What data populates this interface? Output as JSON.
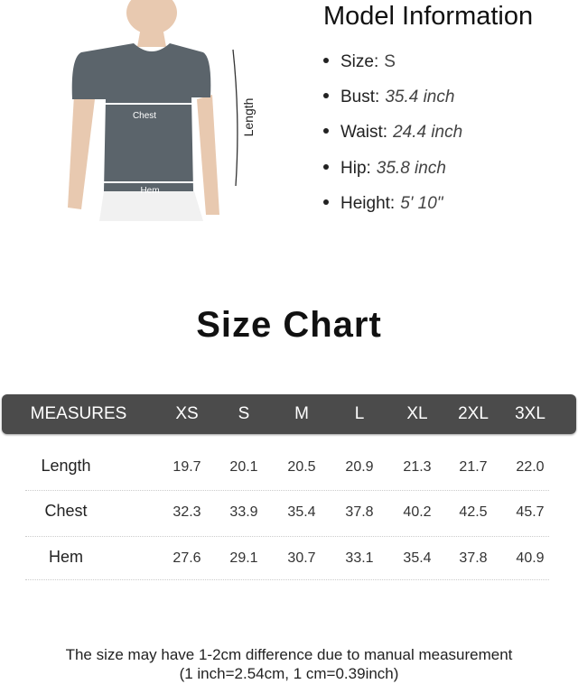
{
  "diagram": {
    "chest_label": "Chest",
    "hem_label": "Hem",
    "length_label": "Length",
    "shirt_color": "#5b646b"
  },
  "model_info": {
    "title": "Model Information",
    "items": [
      {
        "label": "Size:",
        "value": "S",
        "italic": false
      },
      {
        "label": "Bust:",
        "value": "35.4 inch",
        "italic": true
      },
      {
        "label": "Waist:",
        "value": "24.4 inch",
        "italic": true
      },
      {
        "label": "Hip:",
        "value": "35.8 inch",
        "italic": true
      },
      {
        "label": "Height:",
        "value": "5' 10\"",
        "italic": true
      }
    ]
  },
  "size_chart": {
    "title": "Size Chart",
    "header_color": "#4b4b4b",
    "headers": [
      "MEASURES",
      "XS",
      "S",
      "M",
      "L",
      "XL",
      "2XL",
      "3XL"
    ],
    "rows": [
      {
        "label": "Length",
        "values": [
          "19.7",
          "20.1",
          "20.5",
          "20.9",
          "21.3",
          "21.7",
          "22.0"
        ]
      },
      {
        "label": "Chest",
        "values": [
          "32.3",
          "33.9",
          "35.4",
          "37.8",
          "40.2",
          "42.5",
          "45.7"
        ]
      },
      {
        "label": "Hem",
        "values": [
          "27.6",
          "29.1",
          "30.7",
          "33.1",
          "35.4",
          "37.8",
          "40.9"
        ]
      }
    ]
  },
  "footer": {
    "line1": "The size may have 1-2cm difference due to manual measurement",
    "line2": "(1 inch=2.54cm,  1 cm=0.39inch)"
  }
}
